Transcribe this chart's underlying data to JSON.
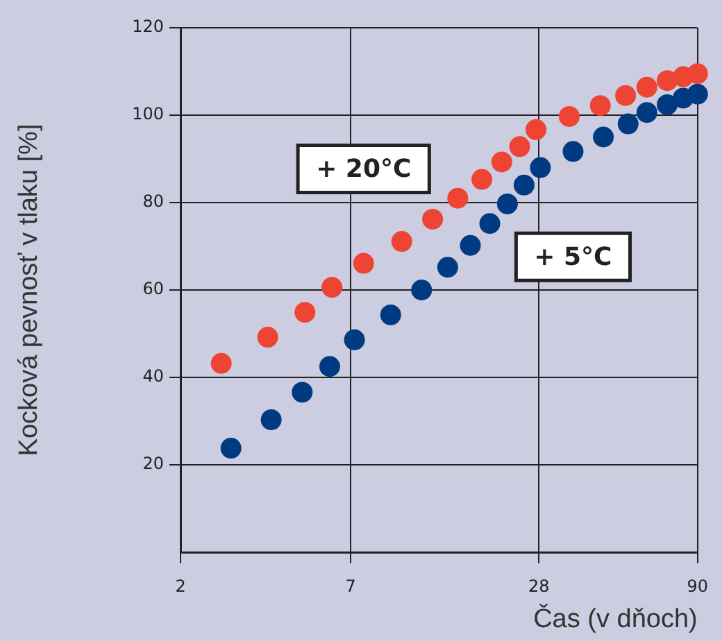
{
  "chart_data": {
    "type": "scatter",
    "xlabel": "Čas (v dňoch)",
    "ylabel": "Kocková pevnosť v tlaku [%]",
    "xlim": [
      2,
      90
    ],
    "xticks": [
      2,
      7,
      28,
      90
    ],
    "log": "x",
    "ylim": [
      0,
      120
    ],
    "yticks": [
      20,
      40,
      60,
      80,
      100,
      120
    ],
    "grid": true,
    "legend": false,
    "marker": "circle",
    "series": [
      {
        "name": "+ 20°C",
        "color": "#ee4433",
        "x": [
          2.7,
          3.8,
          5.0,
          6.1,
          7.7,
          10.2,
          12.8,
          15.4,
          18.4,
          21.3,
          24.3,
          27.4,
          35,
          44,
          53,
          62,
          72,
          81,
          90
        ],
        "values": [
          43.2,
          49.2,
          54.9,
          60.6,
          66.1,
          71.1,
          76.2,
          81.0,
          85.3,
          89.3,
          92.8,
          96.7,
          99.7,
          102.2,
          104.5,
          106.4,
          107.9,
          108.8,
          109.5
        ]
      },
      {
        "name": "+ 5°C",
        "color": "#003a80",
        "x": [
          2.9,
          3.9,
          4.9,
          6.0,
          7.2,
          9.4,
          11.8,
          14.3,
          16.9,
          19.5,
          22.2,
          25.1,
          28.3,
          36,
          45,
          54,
          62,
          72,
          81,
          90
        ],
        "values": [
          23.8,
          30.3,
          36.6,
          42.5,
          48.6,
          54.3,
          60.0,
          65.2,
          70.2,
          75.2,
          79.7,
          84.0,
          88.0,
          91.7,
          95.0,
          98.0,
          100.6,
          102.4,
          103.9,
          104.8
        ]
      }
    ]
  }
}
